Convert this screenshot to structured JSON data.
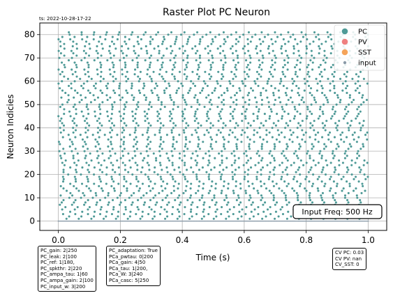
{
  "timestamp": "ts: 2022-10-28-17-22",
  "chart_data": {
    "type": "scatter",
    "title": "Raster Plot PC Neuron",
    "xlabel": "Time (s)",
    "ylabel": "Neuron Indicies",
    "xlim": [
      -0.06,
      1.06
    ],
    "ylim": [
      -4,
      85
    ],
    "x_ticks": [
      "0.0",
      "0.2",
      "0.4",
      "0.6",
      "0.8",
      "1.0"
    ],
    "x_tick_values": [
      0.0,
      0.2,
      0.4,
      0.6,
      0.8,
      1.0
    ],
    "y_ticks": [
      "0",
      "10",
      "20",
      "30",
      "40",
      "50",
      "60",
      "70",
      "80"
    ],
    "y_tick_values": [
      0,
      10,
      20,
      30,
      40,
      50,
      60,
      70,
      80
    ],
    "grid": true,
    "legend_position": "top-right",
    "series": [
      {
        "name": "PC",
        "color": "#4f9a97",
        "neuron_range": [
          1,
          81
        ],
        "time_range": [
          0.0,
          1.0
        ],
        "rate_hz_approx": 25
      },
      {
        "name": "PV",
        "color": "#ef8080",
        "neuron_range": [],
        "time_range": []
      },
      {
        "name": "SST",
        "color": "#f5a45a",
        "neuron_range": [],
        "time_range": []
      },
      {
        "name": "input",
        "color": "#8a9aa8",
        "neuron_range": [
          0,
          0
        ],
        "time_range": [
          0.0,
          1.0
        ]
      }
    ],
    "annotation": "Input Freq: 500 Hz"
  },
  "param_boxes": [
    {
      "text": "PC_gain: 2|250\nPC_leak: 2|100\nPC_ref: 1|180,\nPC_spkthr: 2|220\nPC_ampa_tau: 1|60\nPC_ampa_gain: 2|100\nPC_input_w: 3|200"
    },
    {
      "text": "PC_adaptation: True\nPCa_pwtau: 0|200\nPCa_gain: 4|50\nPCa_tau: 1|200,\nPCa_W: 3|240\nPCa_casc: 5|250"
    },
    {
      "text": "CV PC: 0.03\nCV PV: nan\nCV_SST: 0"
    }
  ]
}
